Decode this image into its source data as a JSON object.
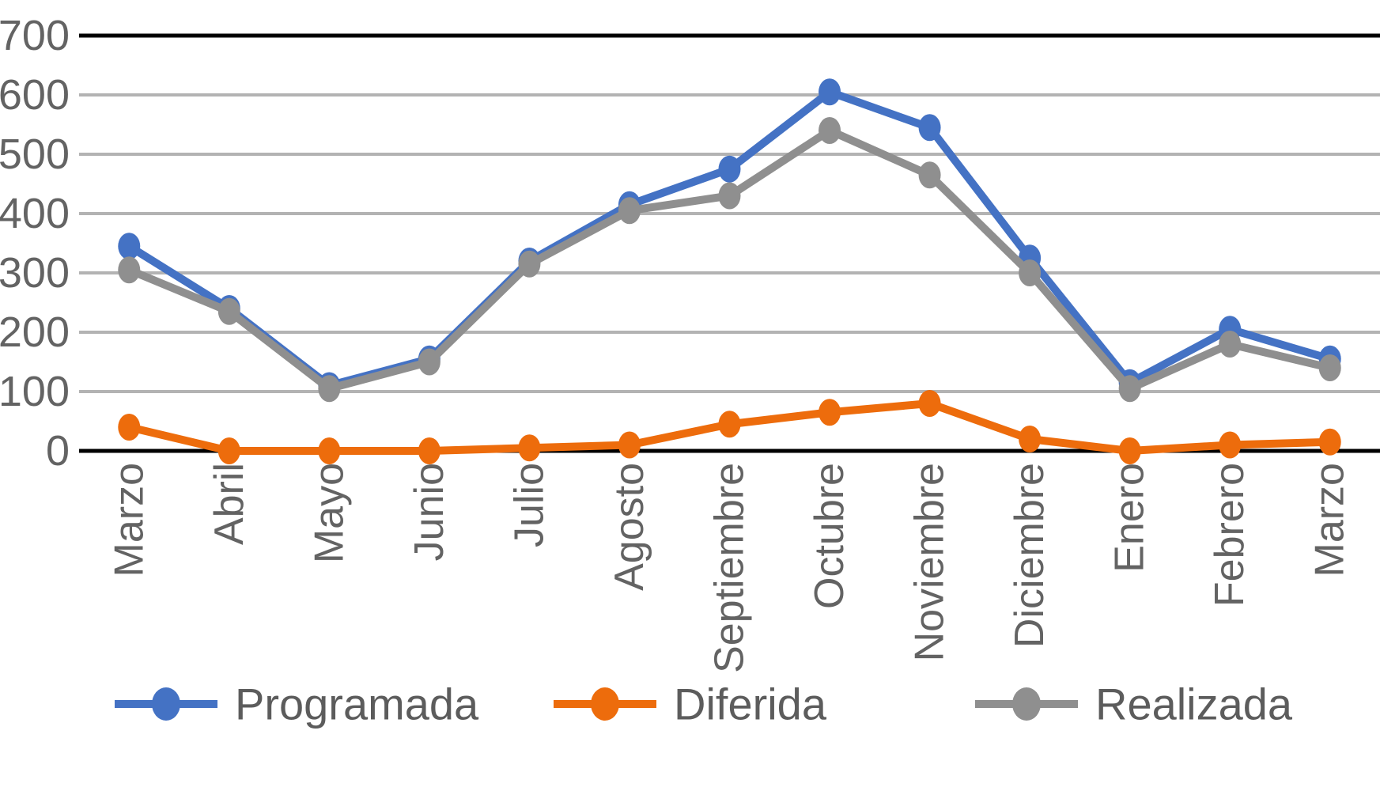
{
  "chart_data": {
    "type": "line",
    "title": "",
    "xlabel": "",
    "ylabel": "",
    "categories": [
      "Marzo",
      "Abril",
      "Mayo",
      "Junio",
      "Julio",
      "Agosto",
      "Septiembre",
      "Octubre",
      "Noviembre",
      "Diciembre",
      "Enero",
      "Febrero",
      "Marzo"
    ],
    "series": [
      {
        "name": "Programada",
        "color": "#4472C4",
        "values": [
          345,
          240,
          110,
          155,
          320,
          415,
          475,
          605,
          545,
          325,
          115,
          205,
          155
        ]
      },
      {
        "name": "Diferida",
        "color": "#ED6C0C",
        "values": [
          40,
          0,
          0,
          0,
          5,
          10,
          45,
          65,
          80,
          20,
          0,
          10,
          15
        ]
      },
      {
        "name": "Realizada",
        "color": "#8F8F8F",
        "values": [
          305,
          235,
          105,
          150,
          315,
          405,
          430,
          540,
          465,
          300,
          105,
          180,
          140
        ]
      }
    ],
    "ylim": [
      0,
      700
    ],
    "ytick_step": 100,
    "ytick_labels": [
      "0",
      "100",
      "200",
      "300",
      "400",
      "500",
      "600",
      "700"
    ],
    "grid": true,
    "legend_position": "bottom",
    "legend_entries": [
      "Programada",
      "Diferida",
      "Realizada"
    ]
  },
  "colors": {
    "background": "#ffffff",
    "gridline": "#b3b3b3",
    "axis_line": "#000000",
    "top_border_line": "#000000",
    "tick_label": "#636363",
    "legend_text": "#5c5c5c"
  }
}
